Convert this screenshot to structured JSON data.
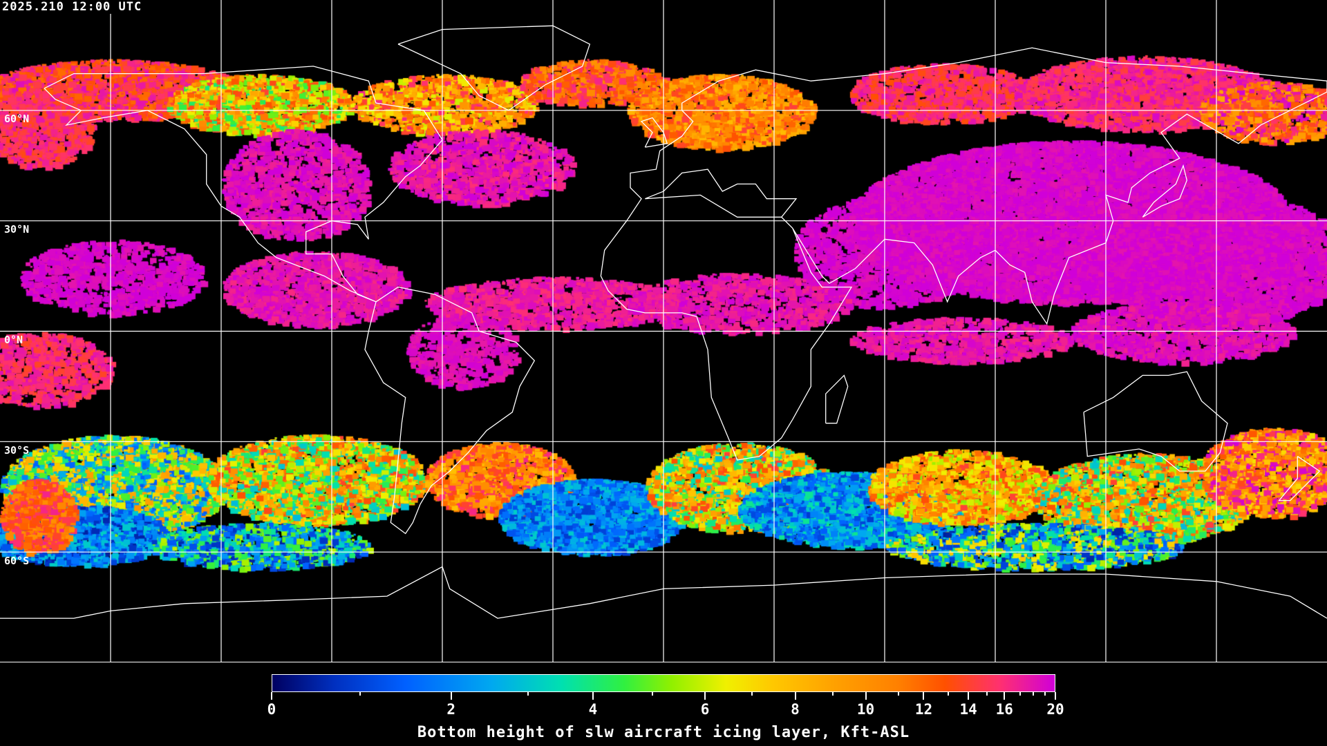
{
  "header": {
    "timestamp": "2025.210 12:00 UTC"
  },
  "map": {
    "projection": "equirectangular",
    "background": "#000000",
    "coastline_color": "#ffffff",
    "gridline_color": "#ffffff",
    "grid_spacing_deg": 30,
    "lat_labels": [
      "60°N",
      "30°N",
      "0°N",
      "30°S",
      "60°S"
    ]
  },
  "colorbar": {
    "title": "Bottom height of slw aircraft icing layer, Kft-ASL",
    "ticks": [
      "0",
      "2",
      "4",
      "6",
      "8",
      "10",
      "12",
      "14",
      "16",
      "20"
    ],
    "range": [
      0,
      20
    ],
    "colors": [
      "#000060",
      "#0060ff",
      "#00a8f0",
      "#00e0b0",
      "#90f000",
      "#f0f000",
      "#ffc800",
      "#ff8000",
      "#ff5000",
      "#ff3070",
      "#d000d8"
    ]
  }
}
